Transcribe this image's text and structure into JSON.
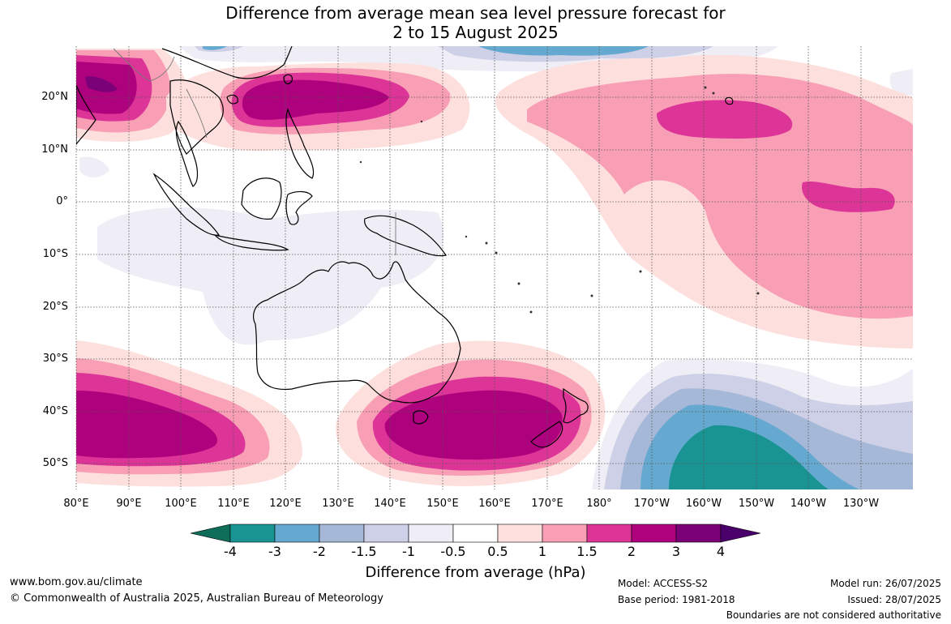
{
  "title": {
    "line1": "Difference from average mean sea level pressure forecast for",
    "line2": "2 to 15 August 2025"
  },
  "map": {
    "lat_labels": [
      "20°N",
      "10°N",
      "0°",
      "10°S",
      "20°S",
      "30°S",
      "40°S",
      "50°S"
    ],
    "lon_labels": [
      "80°E",
      "90°E",
      "100°E",
      "110°E",
      "120°E",
      "130°E",
      "140°E",
      "150°E",
      "160°E",
      "170°E",
      "180°",
      "170°W",
      "160°W",
      "150°W",
      "140°W",
      "130°W"
    ]
  },
  "colorbar": {
    "labels": [
      "-4",
      "-3",
      "-2",
      "-1.5",
      "-1",
      "-0.5",
      "0.5",
      "1",
      "1.5",
      "2",
      "3",
      "4"
    ],
    "colors": [
      "#0f6e5a",
      "#1a9393",
      "#66a9d0",
      "#a6b8d7",
      "#cdd0e6",
      "#efedf5",
      "#ffffff",
      "#fde0dd",
      "#f89fb5",
      "#dd3497",
      "#ae017e",
      "#7a0177",
      "#49006a"
    ],
    "title": "Difference from average (hPa)"
  },
  "footer": {
    "url": "www.bom.gov.au/climate",
    "copyright": "© Commonwealth of Australia 2025, Australian Bureau of Meteorology",
    "model": "Model: ACCESS-S2",
    "base_period": "Base period: 1981-2018",
    "model_run": "Model run: 26/07/2025",
    "issued": "Issued: 28/07/2025",
    "disclaimer": "Boundaries are not considered authoritative"
  }
}
